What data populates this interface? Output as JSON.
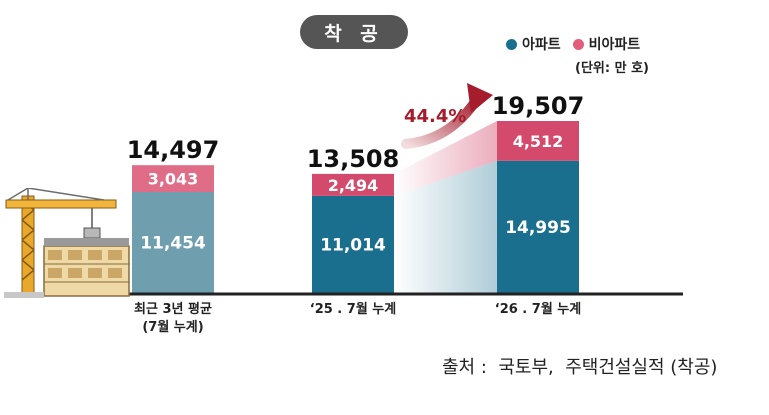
{
  "badge": "착 공",
  "legend": [
    {
      "label": "아파트",
      "color": "#1a6f8e"
    },
    {
      "label": "비아파트",
      "color": "#e25c7c"
    }
  ],
  "unit": "(단위: 만 호)",
  "growth_label": "44.4%",
  "source": "출처 :  국토부,  주택건설실적 (착공)",
  "chart_data": {
    "type": "bar",
    "stacked": true,
    "categories": [
      "최근 3년 평균\n(7월 누계)",
      "‘25 . 7월 누계",
      "‘26 . 7월 누계"
    ],
    "category_lines": [
      [
        "최근 3년 평균",
        "(7월 누계)"
      ],
      [
        "‘25 . 7월 누계"
      ],
      [
        "‘26 . 7월 누계"
      ]
    ],
    "series": [
      {
        "name": "아파트",
        "values": [
          11454,
          11014,
          14995
        ],
        "labels": [
          "11,454",
          "11,014",
          "14,995"
        ]
      },
      {
        "name": "비아파트",
        "values": [
          3043,
          2494,
          4512
        ],
        "labels": [
          "3,043",
          "2,494",
          "4,512"
        ]
      }
    ],
    "totals": [
      14497,
      13508,
      19507
    ],
    "total_labels": [
      "14,497",
      "13,508",
      "19,507"
    ],
    "bar_colors": [
      {
        "apt": "#6f9fae",
        "non": "#e06d88"
      },
      {
        "apt": "#1a6f8e",
        "non": "#d34a6c"
      },
      {
        "apt": "#1a6f8e",
        "non": "#d34a6c"
      }
    ],
    "annotation": {
      "text": "44.4%",
      "color": "#a51c2c"
    }
  }
}
